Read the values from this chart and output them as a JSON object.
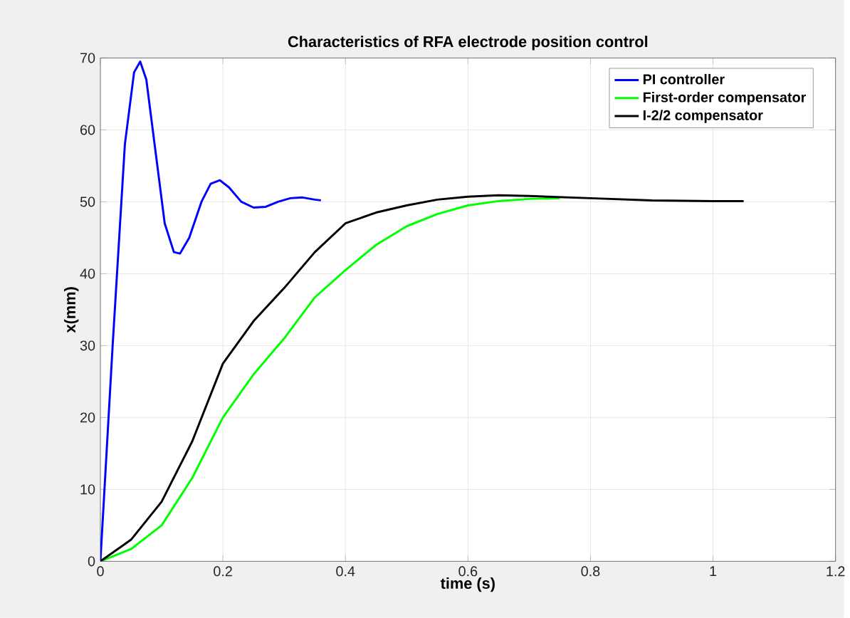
{
  "chart_data": {
    "type": "line",
    "title": "Characteristics of RFA electrode position control",
    "xlabel": "time (s)",
    "ylabel": "x(mm)",
    "xlim": [
      0,
      1.2
    ],
    "xticks": [
      0,
      0.2,
      0.4,
      0.6,
      0.8,
      1,
      1.2
    ],
    "ylim": [
      0,
      70
    ],
    "yticks": [
      0,
      10,
      20,
      30,
      40,
      50,
      60,
      70
    ],
    "grid": true,
    "legend": "top right",
    "series": [
      {
        "name": "PI controller",
        "color": "#0000ff",
        "x": [
          0,
          0.02,
          0.04,
          0.055,
          0.065,
          0.075,
          0.09,
          0.105,
          0.12,
          0.13,
          0.145,
          0.165,
          0.18,
          0.195,
          0.21,
          0.23,
          0.25,
          0.27,
          0.29,
          0.31,
          0.33,
          0.35,
          0.36
        ],
        "values": [
          0,
          30,
          58,
          68,
          69.5,
          67,
          57,
          47,
          43,
          42.8,
          45,
          50,
          52.5,
          53,
          52,
          50,
          49.2,
          49.3,
          50,
          50.5,
          50.6,
          50.3,
          50.2
        ]
      },
      {
        "name": "First-order compensator",
        "color": "#00ff00",
        "x": [
          0,
          0.05,
          0.1,
          0.15,
          0.2,
          0.25,
          0.3,
          0.35,
          0.4,
          0.45,
          0.5,
          0.55,
          0.6,
          0.65,
          0.7,
          0.75
        ],
        "values": [
          0,
          1.7,
          5,
          11.6,
          20,
          26,
          31,
          36.7,
          40.5,
          44,
          46.6,
          48.3,
          49.5,
          50.1,
          50.4,
          50.5
        ]
      },
      {
        "name": "I-2/2 compensator",
        "color": "#000000",
        "x": [
          0,
          0.05,
          0.1,
          0.15,
          0.2,
          0.25,
          0.3,
          0.35,
          0.4,
          0.45,
          0.5,
          0.55,
          0.6,
          0.65,
          0.7,
          0.8,
          0.9,
          1.0,
          1.05
        ],
        "values": [
          0,
          3,
          8.3,
          16.7,
          27.5,
          33.4,
          38,
          43,
          47,
          48.5,
          49.5,
          50.3,
          50.7,
          50.9,
          50.8,
          50.5,
          50.2,
          50.1,
          50.1
        ]
      }
    ]
  }
}
